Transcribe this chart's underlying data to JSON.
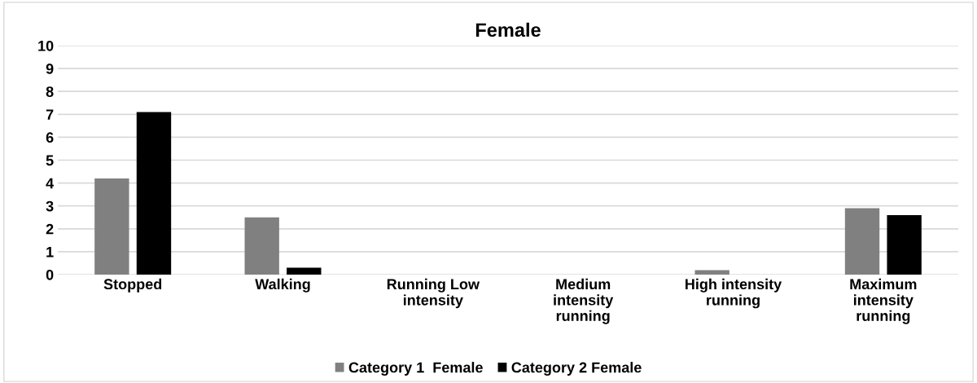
{
  "chart_data": {
    "type": "bar",
    "title": "Female",
    "categories": [
      "Stopped",
      "Walking",
      "Running Low\nintensity",
      "Medium\nintensity\nrunning",
      "High intensity\nrunning",
      "Maximum\nintensity\nrunning"
    ],
    "series": [
      {
        "name": "Category 1  Female",
        "color": "#808080",
        "values": [
          4.2,
          2.5,
          0,
          0,
          0.2,
          2.9
        ]
      },
      {
        "name": "Category 2 Female",
        "color": "#000000",
        "values": [
          7.1,
          0.3,
          0,
          0,
          0,
          2.6
        ]
      }
    ],
    "ylim": [
      0,
      10
    ],
    "yticks": [
      0,
      1,
      2,
      3,
      4,
      5,
      6,
      7,
      8,
      9,
      10
    ],
    "grid": "y",
    "legend": "bottom"
  }
}
